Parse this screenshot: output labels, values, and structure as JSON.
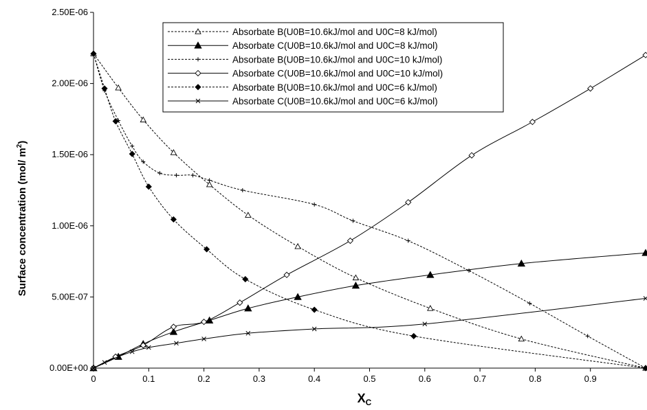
{
  "chart_data": {
    "type": "line",
    "xlabel": "X",
    "xlabel_sub": "C",
    "ylabel": "Surface concentration  (mol/ m",
    "ylabel_sup": "2",
    "ylabel_end": ")",
    "xlim": [
      0,
      1
    ],
    "ylim": [
      0,
      2.5e-06
    ],
    "x_ticks": [
      0,
      0.1,
      0.2,
      0.3,
      0.4,
      0.5,
      0.6,
      0.7,
      0.8,
      0.9
    ],
    "x_tick_labels": [
      "0",
      "0.1",
      "0.2",
      "0.3",
      "0.4",
      "0.5",
      "0.6",
      "0.7",
      "0.8",
      "0.9"
    ],
    "y_ticks": [
      0,
      5e-07,
      1e-06,
      1.5e-06,
      2e-06,
      2.5e-06
    ],
    "y_tick_labels": [
      "0.00E+00",
      "5.00E-07",
      "1.00E-06",
      "1.50E-06",
      "2.00E-06",
      "2.50E-06"
    ],
    "grid": false,
    "legend_position": "top-center",
    "series": [
      {
        "name": "Absorbate B(U0B=10.6kJ/mol  and U0C=8 kJ/mol)",
        "dash": "dashed",
        "marker": "triangle-open",
        "x": [
          0,
          0.045,
          0.09,
          0.145,
          0.21,
          0.28,
          0.37,
          0.475,
          0.61,
          0.775,
          1.0
        ],
        "y": [
          2.21e-06,
          1.97e-06,
          1.745e-06,
          1.515e-06,
          1.29e-06,
          1.075e-06,
          8.55e-07,
          6.35e-07,
          4.2e-07,
          2.05e-07,
          0
        ]
      },
      {
        "name": "Absorbate C(U0B=10.6kJ/mol  and U0C=8 kJ/mol)",
        "dash": "solid",
        "marker": "triangle-filled",
        "x": [
          0,
          0.045,
          0.09,
          0.145,
          0.21,
          0.28,
          0.37,
          0.475,
          0.61,
          0.775,
          1.0
        ],
        "y": [
          0,
          8e-08,
          1.7e-07,
          2.55e-07,
          3.35e-07,
          4.2e-07,
          5e-07,
          5.8e-07,
          6.55e-07,
          7.35e-07,
          8.1e-07
        ]
      },
      {
        "name": "Absorbate B(U0B=10.6kJ/mol  and U0C=10 kJ/mol)",
        "dash": "dashed",
        "marker": "plus",
        "x": [
          0,
          0.02,
          0.045,
          0.07,
          0.09,
          0.12,
          0.15,
          0.18,
          0.21,
          0.27,
          0.4,
          0.47,
          0.57,
          0.68,
          0.79,
          0.895,
          1.0
        ],
        "y": [
          2.21e-06,
          1.95e-06,
          1.74e-06,
          1.56e-06,
          1.45e-06,
          1.37e-06,
          1.355e-06,
          1.355e-06,
          1.32e-06,
          1.25e-06,
          1.15e-06,
          1.035e-06,
          8.95e-07,
          6.85e-07,
          4.55e-07,
          2.25e-07,
          0
        ]
      },
      {
        "name": "Absorbate C(U0B=10.6kJ/mol  and U0C=10 kJ/mol)",
        "dash": "solid",
        "marker": "diamond-open",
        "x": [
          0,
          0.04,
          0.09,
          0.145,
          0.2,
          0.265,
          0.35,
          0.465,
          0.57,
          0.685,
          0.795,
          0.9,
          1.0
        ],
        "y": [
          0,
          8e-08,
          1.6e-07,
          2.9e-07,
          3.25e-07,
          4.6e-07,
          6.55e-07,
          8.95e-07,
          1.165e-06,
          1.495e-06,
          1.73e-06,
          1.965e-06,
          2.2e-06
        ]
      },
      {
        "name": "Absorbate B(U0B=10.6kJ/mol  and U0C=6 kJ/mol)",
        "dash": "dashed",
        "marker": "diamond-filled",
        "x": [
          0,
          0.02,
          0.04,
          0.07,
          0.1,
          0.145,
          0.205,
          0.275,
          0.4,
          0.58,
          1.0
        ],
        "y": [
          2.21e-06,
          1.965e-06,
          1.735e-06,
          1.505e-06,
          1.275e-06,
          1.045e-06,
          8.35e-07,
          6.25e-07,
          4.1e-07,
          2.25e-07,
          0
        ]
      },
      {
        "name": "Absorbate C(U0B=10.6kJ/mol  and U0C=6 kJ/mol)",
        "dash": "solid",
        "marker": "x",
        "x": [
          0,
          0.02,
          0.045,
          0.07,
          0.1,
          0.15,
          0.2,
          0.28,
          0.4,
          0.6,
          1.0
        ],
        "y": [
          0,
          4e-08,
          8e-08,
          1.15e-07,
          1.45e-07,
          1.75e-07,
          2.05e-07,
          2.45e-07,
          2.75e-07,
          3.1e-07,
          4.9e-07
        ]
      }
    ]
  }
}
